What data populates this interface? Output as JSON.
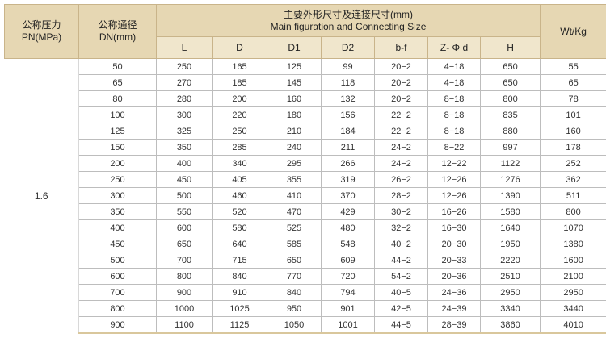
{
  "header": {
    "pn": [
      "公称压力",
      "PN(MPa)"
    ],
    "dn": [
      "公称通径",
      "DN(mm)"
    ],
    "main": [
      "主要外形尺寸及连接尺寸(mm)",
      "Main figuration and Connecting Size"
    ],
    "wt": "Wt/Kg",
    "sub": [
      "L",
      "D",
      "D1",
      "D2",
      "b-f",
      "Z- Φ d",
      "H"
    ]
  },
  "pn_value": "1.6",
  "rows": [
    [
      "50",
      "250",
      "165",
      "125",
      "99",
      "20−2",
      "4−18",
      "650",
      "55"
    ],
    [
      "65",
      "270",
      "185",
      "145",
      "118",
      "20−2",
      "4−18",
      "650",
      "65"
    ],
    [
      "80",
      "280",
      "200",
      "160",
      "132",
      "20−2",
      "8−18",
      "800",
      "78"
    ],
    [
      "100",
      "300",
      "220",
      "180",
      "156",
      "22−2",
      "8−18",
      "835",
      "101"
    ],
    [
      "125",
      "325",
      "250",
      "210",
      "184",
      "22−2",
      "8−18",
      "880",
      "160"
    ],
    [
      "150",
      "350",
      "285",
      "240",
      "211",
      "24−2",
      "8−22",
      "997",
      "178"
    ],
    [
      "200",
      "400",
      "340",
      "295",
      "266",
      "24−2",
      "12−22",
      "1122",
      "252"
    ],
    [
      "250",
      "450",
      "405",
      "355",
      "319",
      "26−2",
      "12−26",
      "1276",
      "362"
    ],
    [
      "300",
      "500",
      "460",
      "410",
      "370",
      "28−2",
      "12−26",
      "1390",
      "511"
    ],
    [
      "350",
      "550",
      "520",
      "470",
      "429",
      "30−2",
      "16−26",
      "1580",
      "800"
    ],
    [
      "400",
      "600",
      "580",
      "525",
      "480",
      "32−2",
      "16−30",
      "1640",
      "1070"
    ],
    [
      "450",
      "650",
      "640",
      "585",
      "548",
      "40−2",
      "20−30",
      "1950",
      "1380"
    ],
    [
      "500",
      "700",
      "715",
      "650",
      "609",
      "44−2",
      "20−33",
      "2220",
      "1600"
    ],
    [
      "600",
      "800",
      "840",
      "770",
      "720",
      "54−2",
      "20−36",
      "2510",
      "2100"
    ],
    [
      "700",
      "900",
      "910",
      "840",
      "794",
      "40−5",
      "24−36",
      "2950",
      "2950"
    ],
    [
      "800",
      "1000",
      "1025",
      "950",
      "901",
      "42−5",
      "24−39",
      "3340",
      "3440"
    ],
    [
      "900",
      "1100",
      "1125",
      "1050",
      "1001",
      "44−5",
      "28−39",
      "3860",
      "4010"
    ]
  ]
}
